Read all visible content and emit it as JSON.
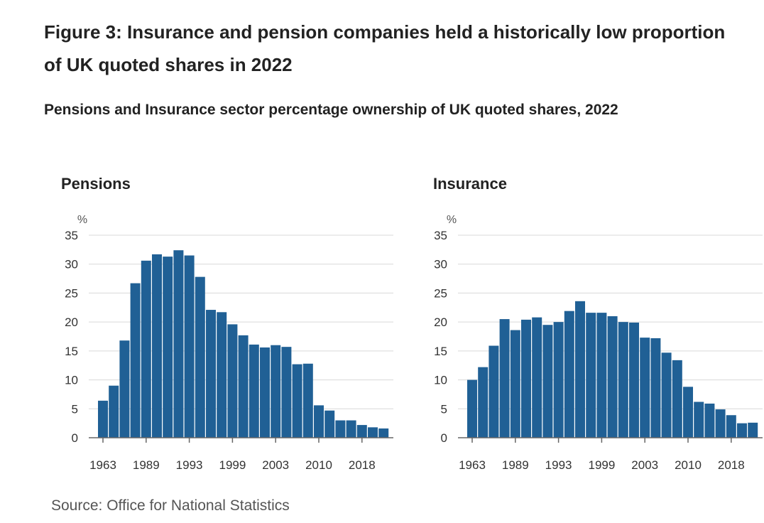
{
  "figure": {
    "title": "Figure 3: Insurance and pension companies held a historically low proportion of UK quoted shares in 2022",
    "subtitle": "Pensions and Insurance sector percentage ownership of UK quoted shares, 2022"
  },
  "source": "Source: Office for National Statistics",
  "colors": {
    "bar": "#206095",
    "grid": "#d9d9d9",
    "axis": "#666666"
  },
  "chart_data": [
    {
      "type": "bar",
      "title": "Pensions",
      "ylabel": "%",
      "ylim": [
        0,
        35
      ],
      "yticks": [
        0,
        5,
        10,
        15,
        20,
        25,
        30,
        35
      ],
      "xtick_labels": [
        "1963",
        "1989",
        "1993",
        "1999",
        "2003",
        "2010",
        "2018"
      ],
      "grid": true,
      "values": [
        6.4,
        9.0,
        16.8,
        26.7,
        30.6,
        31.7,
        31.3,
        32.4,
        31.5,
        27.8,
        22.1,
        21.7,
        19.6,
        17.7,
        16.1,
        15.6,
        16.0,
        15.7,
        12.7,
        12.8,
        5.6,
        4.7,
        3.0,
        3.0,
        2.2,
        1.8,
        1.6
      ]
    },
    {
      "type": "bar",
      "title": "Insurance",
      "ylabel": "%",
      "ylim": [
        0,
        35
      ],
      "yticks": [
        0,
        5,
        10,
        15,
        20,
        25,
        30,
        35
      ],
      "xtick_labels": [
        "1963",
        "1989",
        "1993",
        "1999",
        "2003",
        "2010",
        "2018"
      ],
      "grid": true,
      "values": [
        10.0,
        12.2,
        15.9,
        20.5,
        18.6,
        20.4,
        20.8,
        19.5,
        20.0,
        21.9,
        23.6,
        21.6,
        21.6,
        21.0,
        20.0,
        19.9,
        17.3,
        17.2,
        14.7,
        13.4,
        8.8,
        6.2,
        5.9,
        4.9,
        3.9,
        2.5,
        2.6
      ]
    }
  ]
}
